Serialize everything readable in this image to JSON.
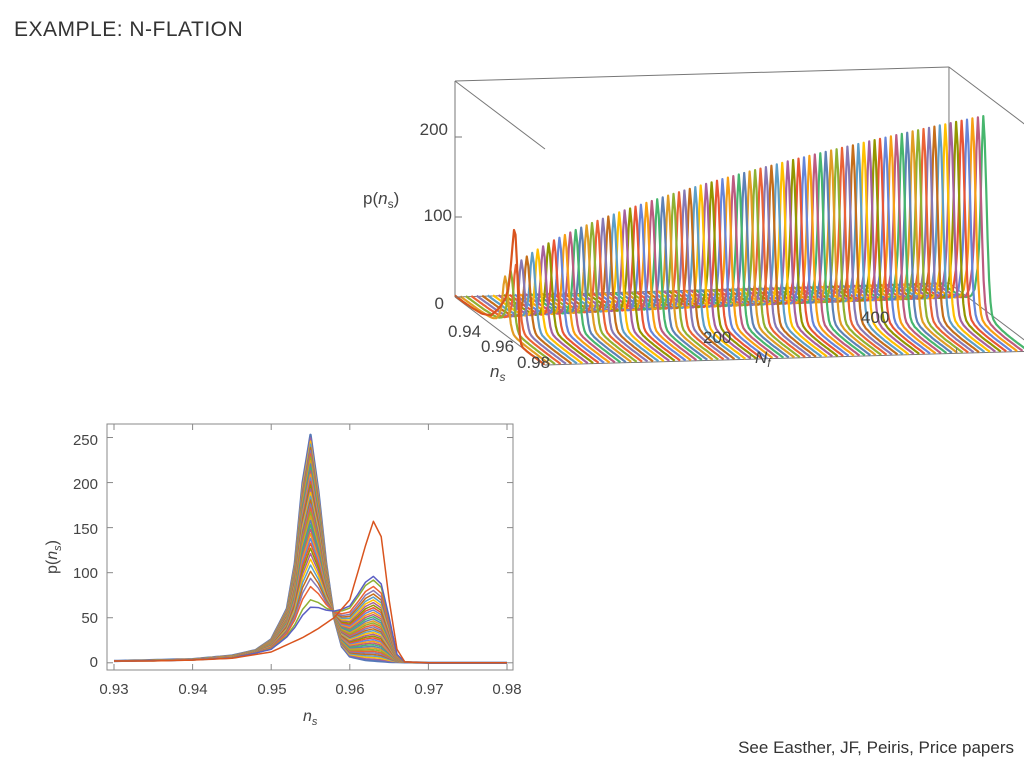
{
  "slide": {
    "title": "EXAMPLE: N-FLATION",
    "citation": "See Easther, JF, Peiris, Price papers"
  },
  "colors": {
    "series": [
      "#5e81b5",
      "#e19c24",
      "#8fb032",
      "#eb6235",
      "#8778b3",
      "#c56e1a",
      "#5d9ec7",
      "#ffbf00",
      "#a5609d",
      "#929600",
      "#e95536",
      "#6685d9",
      "#f89f13",
      "#bc5b80",
      "#47b66d"
    ],
    "axis": "#666666",
    "first_curve": "#d9541e",
    "second_curve": "#5b5fc4",
    "envelope": "#5578b8"
  },
  "chart_data": [
    {
      "type": "surface-3d",
      "zlabel_prefix": "p(",
      "zlabel_var": "n",
      "zlabel_sub": "s",
      "zlabel_suffix": ")",
      "ylabel_var": "n",
      "ylabel_sub": "s",
      "xlabel_var": "N",
      "xlabel_sub": "f",
      "z_ticks": [
        "0",
        "100",
        "200"
      ],
      "ns_ticks": [
        "0.94",
        "0.96",
        "0.98"
      ],
      "nf_ticks": [
        "200",
        "400"
      ],
      "nf_range": [
        1,
        480
      ],
      "ns_range": [
        0.93,
        0.98
      ],
      "z_range": [
        0,
        270
      ],
      "note": ""
    },
    {
      "type": "line",
      "xlabel_var": "n",
      "xlabel_sub": "s",
      "ylabel_prefix": "p(",
      "ylabel_var": "n",
      "ylabel_sub": "s",
      "ylabel_suffix": ")",
      "xlim": [
        0.93,
        0.98
      ],
      "ylim": [
        -8,
        265
      ],
      "x_ticks": [
        "0.93",
        "0.94",
        "0.95",
        "0.96",
        "0.97",
        "0.98"
      ],
      "y_ticks": [
        "0",
        "50",
        "100",
        "150",
        "200",
        "250"
      ],
      "x_tick_values": [
        0.93,
        0.94,
        0.95,
        0.96,
        0.97,
        0.98
      ],
      "y_tick_values": [
        0,
        50,
        100,
        150,
        200,
        250
      ],
      "first_series": {
        "x": [
          0.93,
          0.935,
          0.94,
          0.945,
          0.95,
          0.952,
          0.954,
          0.956,
          0.958,
          0.96,
          0.961,
          0.962,
          0.963,
          0.964,
          0.965,
          0.966,
          0.967,
          0.97,
          0.98
        ],
        "y": [
          2,
          2,
          3,
          5,
          12,
          20,
          28,
          38,
          50,
          70,
          100,
          130,
          157,
          140,
          70,
          15,
          1,
          0,
          0
        ]
      },
      "second_series": {
        "x": [
          0.93,
          0.935,
          0.94,
          0.945,
          0.95,
          0.952,
          0.954,
          0.956,
          0.958,
          0.96,
          0.961,
          0.962,
          0.963,
          0.964,
          0.965,
          0.966,
          0.967,
          0.97,
          0.98
        ],
        "y": [
          2,
          2,
          3,
          5,
          14,
          26,
          40,
          50,
          58,
          68,
          82,
          97,
          104,
          95,
          55,
          10,
          1,
          0,
          0
        ]
      },
      "peak_series": {
        "x": [
          0.93,
          0.935,
          0.94,
          0.945,
          0.948,
          0.95,
          0.952,
          0.953,
          0.954,
          0.955,
          0.956,
          0.957,
          0.958,
          0.959,
          0.96,
          0.962,
          0.965,
          0.97,
          0.98
        ],
        "y": [
          2,
          3,
          4,
          8,
          14,
          26,
          60,
          110,
          200,
          253,
          190,
          110,
          50,
          18,
          7,
          3,
          1,
          0,
          0
        ]
      }
    }
  ]
}
